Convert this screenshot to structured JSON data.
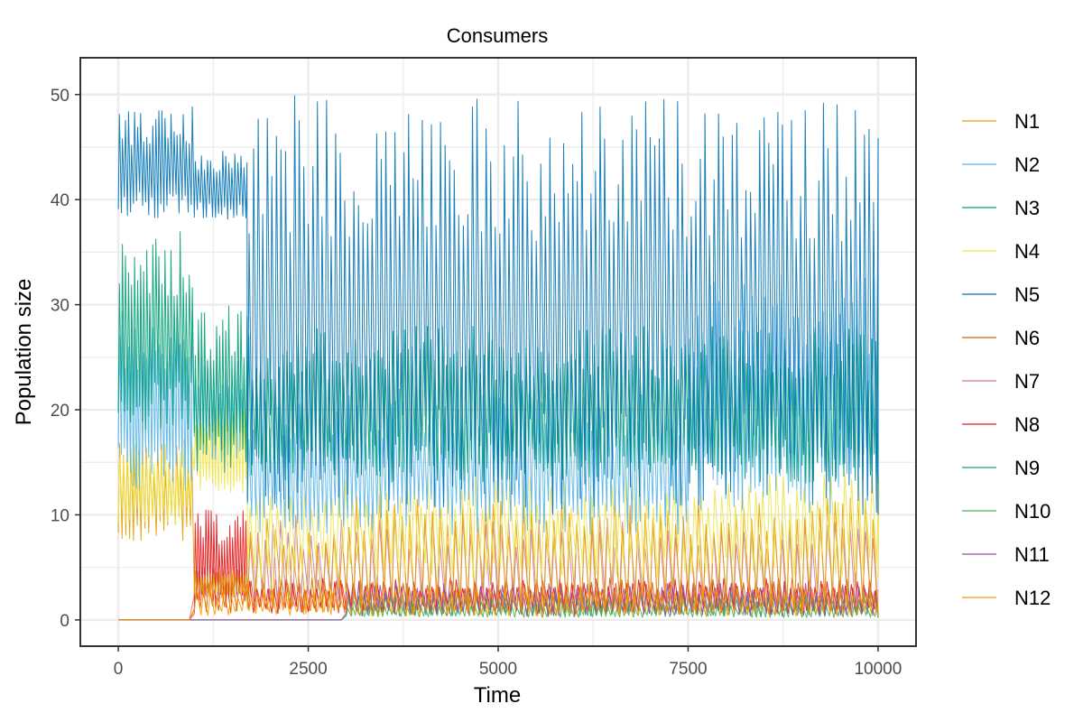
{
  "chart_data": {
    "type": "line",
    "title": "Consumers",
    "xlabel": "Time",
    "ylabel": "Population size",
    "xlim": [
      -500,
      10500
    ],
    "ylim": [
      -2.5,
      53.5
    ],
    "xticks": [
      0,
      2500,
      5000,
      7500,
      10000
    ],
    "xtick_labels": [
      "0",
      "2500",
      "5000",
      "7500",
      "10000"
    ],
    "yticks": [
      0,
      10,
      20,
      30,
      40,
      50
    ],
    "ytick_labels": [
      "0",
      "10",
      "20",
      "30",
      "40",
      "50"
    ],
    "grid": true,
    "legend_position": "right",
    "series": [
      {
        "name": "N1",
        "color": "#E69F00",
        "segments": [
          {
            "x0": 0,
            "x1": 1000,
            "lo": 7.5,
            "hi": 17.5,
            "period": 50
          },
          {
            "x0": 1000,
            "x1": 1700,
            "lo": 2,
            "hi": 5,
            "period": 40
          },
          {
            "x0": 1700,
            "x1": 3000,
            "lo": 0.5,
            "hi": 10,
            "period": 110
          },
          {
            "x0": 3000,
            "x1": 10000,
            "lo": 0.5,
            "hi": 12,
            "period": 100
          }
        ]
      },
      {
        "name": "N2",
        "color": "#56B4E9",
        "segments": [
          {
            "x0": 0,
            "x1": 1000,
            "lo": 12,
            "hi": 30,
            "period": 40
          },
          {
            "x0": 1000,
            "x1": 1700,
            "lo": 15,
            "hi": 25,
            "period": 40
          },
          {
            "x0": 1700,
            "x1": 7500,
            "lo": 8,
            "hi": 22,
            "period": 55
          },
          {
            "x0": 7500,
            "x1": 10000,
            "lo": 10,
            "hi": 33,
            "period": 55
          }
        ]
      },
      {
        "name": "N3",
        "color": "#009E73",
        "segments": [
          {
            "x0": 0,
            "x1": 1000,
            "lo": 18,
            "hi": 37,
            "period": 40
          },
          {
            "x0": 1000,
            "x1": 1700,
            "lo": 14,
            "hi": 30,
            "period": 40
          },
          {
            "x0": 1700,
            "x1": 10000,
            "lo": 13,
            "hi": 28,
            "period": 50
          }
        ]
      },
      {
        "name": "N4",
        "color": "#F0E442",
        "segments": [
          {
            "x0": 0,
            "x1": 1000,
            "lo": 9,
            "hi": 17,
            "period": 50
          },
          {
            "x0": 1000,
            "x1": 1700,
            "lo": 12,
            "hi": 21,
            "period": 40
          },
          {
            "x0": 1700,
            "x1": 10000,
            "lo": 4,
            "hi": 14,
            "period": 90
          }
        ]
      },
      {
        "name": "N5",
        "color": "#0072B2",
        "segments": [
          {
            "x0": 0,
            "x1": 1000,
            "lo": 38,
            "hi": 49,
            "period": 40
          },
          {
            "x0": 1000,
            "x1": 1700,
            "lo": 38,
            "hi": 45,
            "period": 40
          },
          {
            "x0": 1700,
            "x1": 10000,
            "lo": 10,
            "hi": 50,
            "period": 60
          }
        ]
      },
      {
        "name": "N6",
        "color": "#D55E00",
        "segments": [
          {
            "x0": 0,
            "x1": 1000,
            "lo": 0,
            "hi": 0,
            "period": 100
          },
          {
            "x0": 1000,
            "x1": 10000,
            "lo": 0.5,
            "hi": 4,
            "period": 80
          }
        ]
      },
      {
        "name": "N7",
        "color": "#CC79A7",
        "segments": [
          {
            "x0": 0,
            "x1": 1000,
            "lo": 0,
            "hi": 0,
            "period": 100
          },
          {
            "x0": 1000,
            "x1": 1700,
            "lo": 2,
            "hi": 5,
            "period": 40
          },
          {
            "x0": 1700,
            "x1": 10000,
            "lo": 0.5,
            "hi": 10,
            "period": 100
          }
        ]
      },
      {
        "name": "N8",
        "color": "#E41A1C",
        "segments": [
          {
            "x0": 0,
            "x1": 1000,
            "lo": 0,
            "hi": 0,
            "period": 100
          },
          {
            "x0": 1000,
            "x1": 1700,
            "lo": 1,
            "hi": 10.5,
            "period": 35
          },
          {
            "x0": 1700,
            "x1": 10000,
            "lo": 0.5,
            "hi": 4,
            "period": 80
          }
        ]
      },
      {
        "name": "N9",
        "color": "#1F9E89",
        "segments": [
          {
            "x0": 0,
            "x1": 3000,
            "lo": 0,
            "hi": 0,
            "period": 100
          },
          {
            "x0": 3000,
            "x1": 10000,
            "lo": 0.3,
            "hi": 2.5,
            "period": 70
          }
        ]
      },
      {
        "name": "N10",
        "color": "#4DAF4A",
        "segments": [
          {
            "x0": 0,
            "x1": 3000,
            "lo": 0,
            "hi": 0,
            "period": 100
          },
          {
            "x0": 3000,
            "x1": 10000,
            "lo": 0.2,
            "hi": 1.5,
            "period": 60
          }
        ]
      },
      {
        "name": "N11",
        "color": "#984EA3",
        "segments": [
          {
            "x0": 0,
            "x1": 3000,
            "lo": 0,
            "hi": 0,
            "period": 100
          },
          {
            "x0": 3000,
            "x1": 10000,
            "lo": 0.3,
            "hi": 3.5,
            "period": 70
          }
        ]
      },
      {
        "name": "N12",
        "color": "#FF9900",
        "segments": [
          {
            "x0": 0,
            "x1": 1000,
            "lo": 0,
            "hi": 0,
            "period": 100
          },
          {
            "x0": 1000,
            "x1": 10000,
            "lo": 0.3,
            "hi": 3,
            "period": 90
          }
        ]
      }
    ]
  }
}
